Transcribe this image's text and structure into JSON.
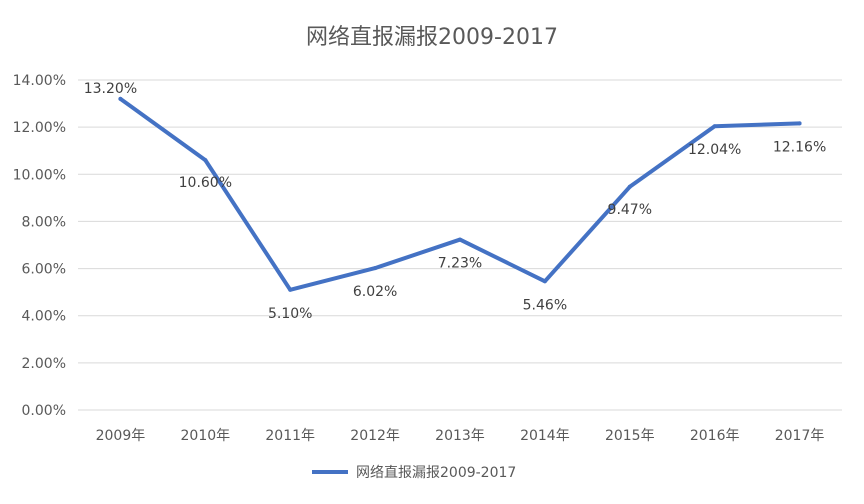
{
  "chart_data": {
    "type": "line",
    "title": "网络直报漏报2009-2017",
    "categories": [
      "2009年",
      "2010年",
      "2011年",
      "2012年",
      "2013年",
      "2014年",
      "2015年",
      "2016年",
      "2017年"
    ],
    "series": [
      {
        "name": "网络直报漏报2009-2017",
        "values": [
          13.2,
          10.6,
          5.1,
          6.02,
          7.23,
          5.46,
          9.47,
          12.04,
          12.16
        ],
        "labels": [
          "13.20%",
          "10.60%",
          "5.10%",
          "6.02%",
          "7.23%",
          "5.46%",
          "9.47%",
          "12.04%",
          "12.16%"
        ],
        "color": "#4472C4"
      }
    ],
    "yticks": [
      "0.00%",
      "2.00%",
      "4.00%",
      "6.00%",
      "8.00%",
      "10.00%",
      "12.00%",
      "14.00%"
    ],
    "ylim": [
      0,
      14
    ],
    "grid": true,
    "legend": "bottom",
    "gridColor": "#d9d9d9"
  }
}
